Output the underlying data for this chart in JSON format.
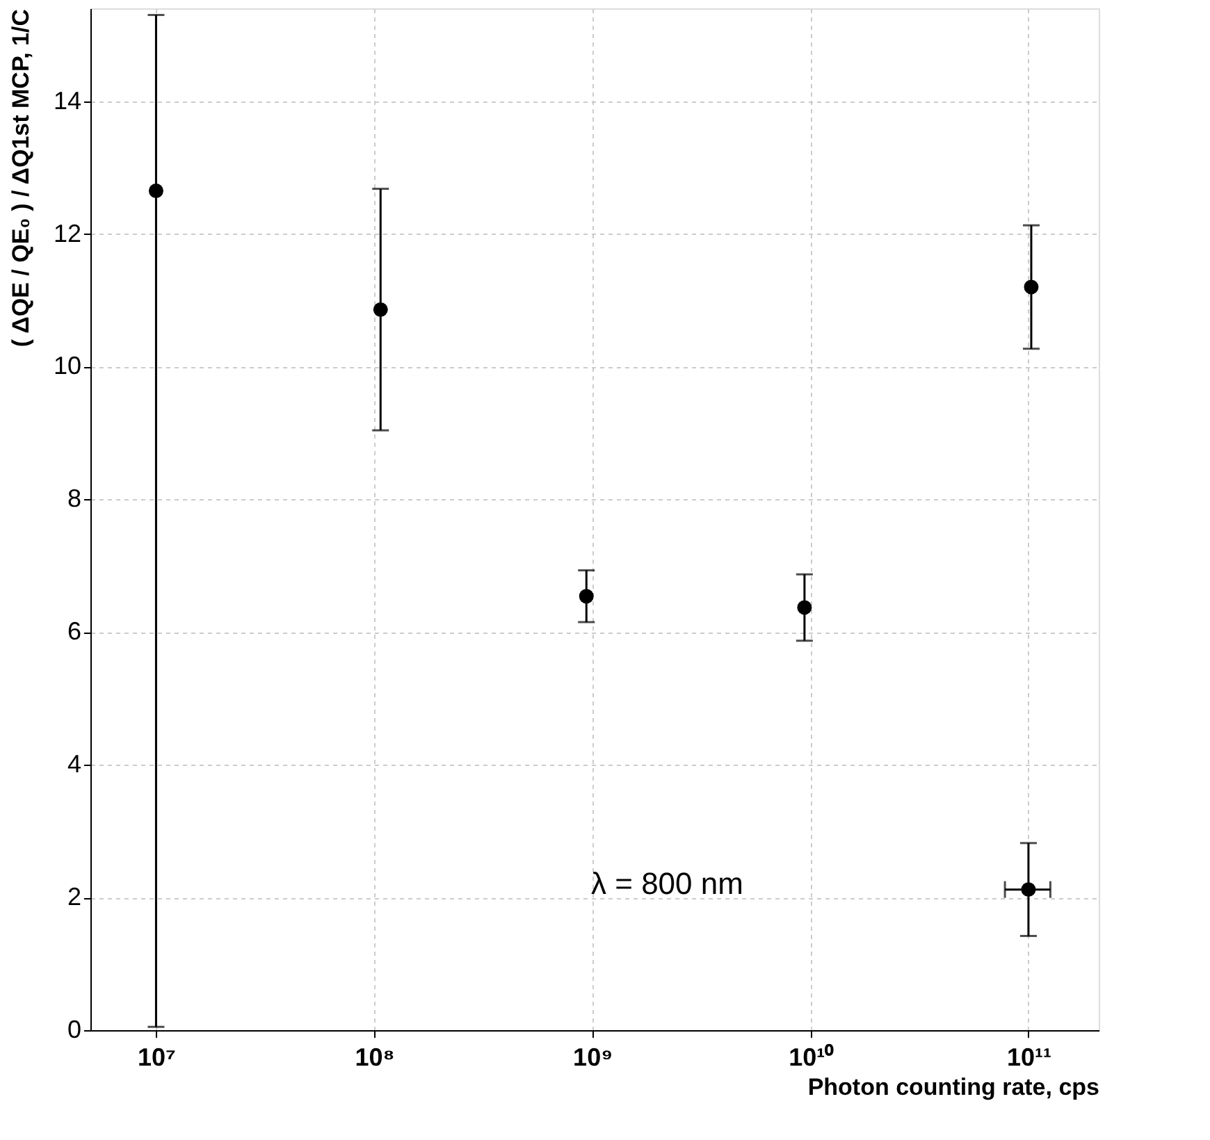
{
  "chart_data": {
    "type": "scatter",
    "xlabel": "Photon counting rate, cps",
    "ylabel": "( ΔQE / QE₀ ) / ΔQ1st MCP, 1/C",
    "x": [
      10000000.0,
      107000000.0,
      940000000.0,
      9400000000.0,
      103000000000.0,
      100000000000.0
    ],
    "series": [
      {
        "color": "#000000",
        "values": [
          12.65,
          10.86,
          6.54,
          6.37,
          11.2,
          2.12
        ],
        "errors": [
          [
            0.05,
            15.3
          ],
          1.82,
          0.39,
          0.5,
          0.93,
          0.7
        ],
        "xerrors": [
          null,
          null,
          null,
          null,
          null,
          [
            78000000000.0,
            126000000000.0
          ]
        ]
      }
    ],
    "log": "x",
    "xlim": [
      5000000.0,
      210000000000.0
    ],
    "xticks": [
      {
        "value": 10000000.0,
        "label": "10⁷"
      },
      {
        "value": 100000000.0,
        "label": "10⁸"
      },
      {
        "value": 1000000000.0,
        "label": "10⁹"
      },
      {
        "value": 10000000000.0,
        "label": "10¹⁰"
      },
      {
        "value": 100000000000.0,
        "label": "10¹¹"
      }
    ],
    "ylim": [
      0,
      15.4
    ],
    "yticks": [
      0,
      2,
      4,
      6,
      8,
      10,
      12,
      14
    ],
    "grid": true,
    "marker": "circle",
    "legend": false,
    "annotations": [
      "λ = 800 nm"
    ]
  }
}
